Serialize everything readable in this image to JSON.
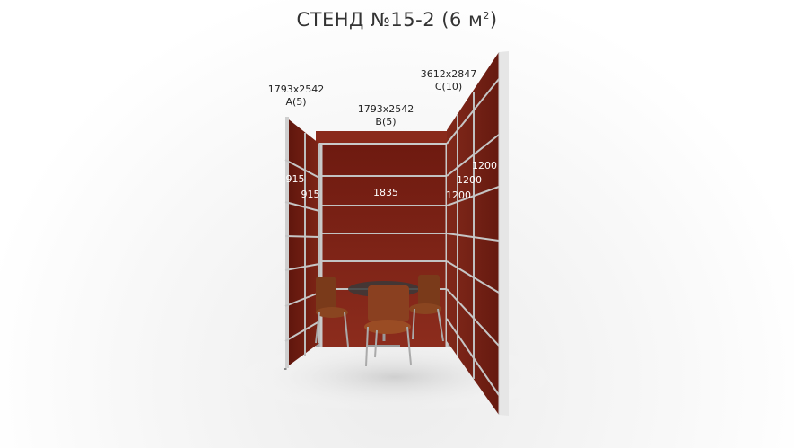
{
  "title": {
    "main": "СТЕНД №15-2 (6 м",
    "sup": "2",
    "close": ")"
  },
  "panels": {
    "a": {
      "size": "1793x2542",
      "code": "A(5)"
    },
    "b": {
      "size": "1793x2542",
      "code": "B(5)"
    },
    "c": {
      "size": "3612x2847",
      "code": "C(10)"
    }
  },
  "dimensions": {
    "a_outer": "915",
    "a_inner": "915",
    "b_width": "1835",
    "c_1": "1200",
    "c_2": "1200",
    "c_3": "1200"
  },
  "colors": {
    "wall": "#7a1f14",
    "frame": "#b9b9b9",
    "edge": "#e4e4e4"
  }
}
